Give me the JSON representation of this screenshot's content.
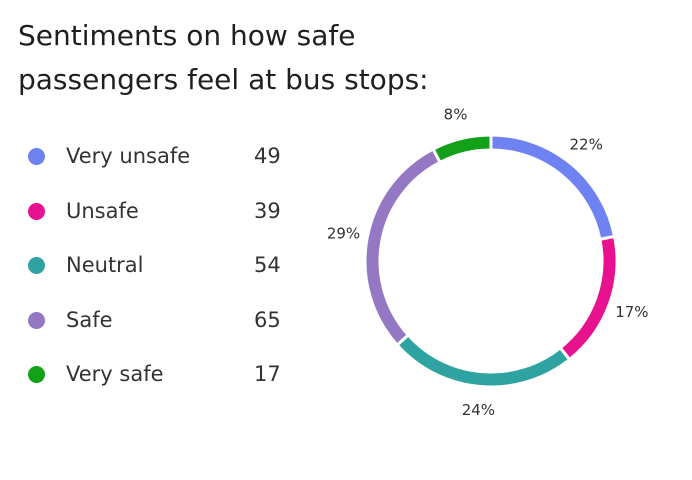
{
  "chart_data": {
    "type": "pie",
    "title": "Sentiments on how safe passengers feel at bus stops:",
    "categories": [
      "Very unsafe",
      "Unsafe",
      "Neutral",
      "Safe",
      "Very safe"
    ],
    "values": [
      49,
      39,
      54,
      65,
      17
    ],
    "percent_labels": [
      "22%",
      "17%",
      "24%",
      "29%",
      "8%"
    ],
    "colors": [
      "#6f82f2",
      "#e8118e",
      "#2ea3a1",
      "#9478c4",
      "#14a11a"
    ],
    "style": "donut",
    "legend_position": "left"
  }
}
